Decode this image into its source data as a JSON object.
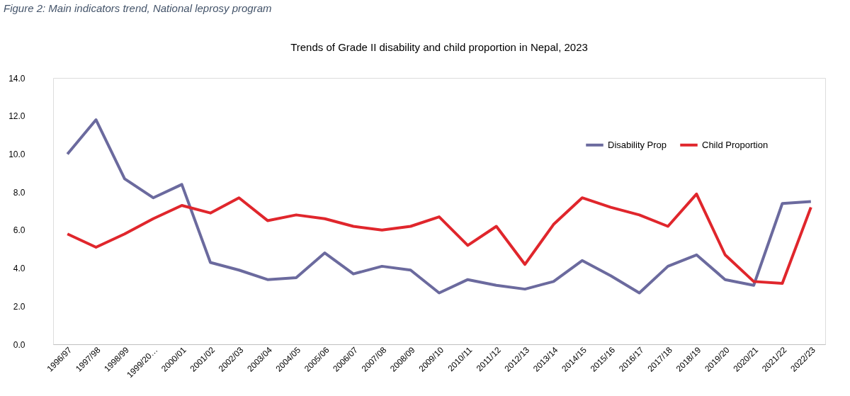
{
  "chart_data": {
    "type": "line",
    "title": "Trends of Grade II disability and child proportion in Nepal, 2023",
    "annotations": [
      "Figure 2: Main indicators trend, National leprosy program"
    ],
    "categories": [
      "1996/97",
      "1997/98",
      "1998/99",
      "1999/20…",
      "2000/01",
      "2001/02",
      "2002/03",
      "2003/04",
      "2004/05",
      "2005/06",
      "2006/07",
      "2007/08",
      "2008/09",
      "2009/10",
      "2010/11",
      "2011/12",
      "2012/13",
      "2013/14",
      "2014/15",
      "2015/16",
      "2016/17",
      "2017/18",
      "2018/19",
      "2019/20",
      "2020/21",
      "2021/22",
      "2022/23"
    ],
    "series": [
      {
        "name": "Disability Prop",
        "color": "#6b6a9e",
        "values": [
          10.0,
          11.8,
          8.7,
          7.7,
          8.4,
          4.3,
          3.9,
          3.4,
          3.5,
          4.8,
          3.7,
          4.1,
          3.9,
          2.7,
          3.4,
          3.1,
          2.9,
          3.3,
          4.4,
          3.6,
          2.7,
          4.1,
          4.7,
          3.4,
          3.1,
          7.4,
          7.5
        ]
      },
      {
        "name": "Child Proportion",
        "color": "#e0262c",
        "values": [
          5.8,
          5.1,
          5.8,
          6.6,
          7.3,
          6.9,
          7.7,
          6.5,
          6.8,
          6.6,
          6.2,
          6.0,
          6.2,
          6.7,
          5.2,
          6.2,
          4.2,
          6.3,
          7.7,
          7.2,
          6.8,
          6.2,
          7.9,
          4.7,
          3.3,
          3.2,
          7.2
        ]
      }
    ],
    "ylim": [
      0,
      14
    ],
    "yticks": [
      {
        "value": 0,
        "label": "0.0"
      },
      {
        "value": 2,
        "label": "2.0"
      },
      {
        "value": 4,
        "label": "4.0"
      },
      {
        "value": 6,
        "label": "6.0"
      },
      {
        "value": 8,
        "label": "8.0"
      },
      {
        "value": 10,
        "label": "10.0"
      },
      {
        "value": 12,
        "label": "12.0"
      },
      {
        "value": 14,
        "label": "14.0"
      }
    ],
    "legend": "top right",
    "grid": false
  }
}
